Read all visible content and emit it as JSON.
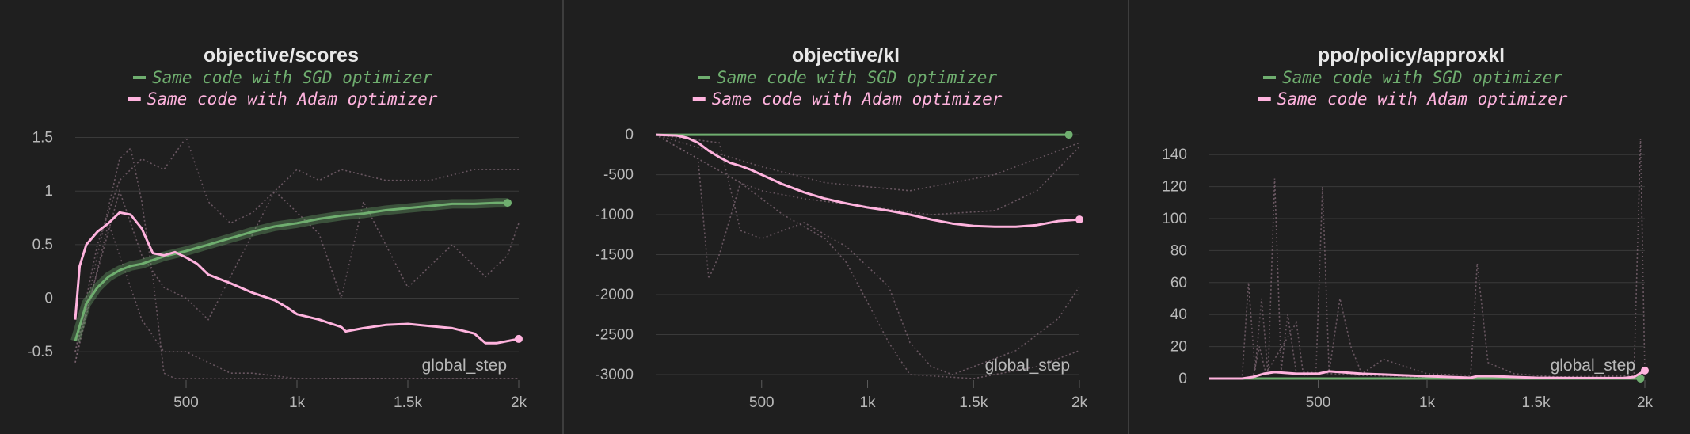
{
  "colors": {
    "background": "#1f1f1f",
    "grid": "#3a3a3a",
    "sgd": "#6fae6f",
    "adam": "#ffb3de",
    "ghost": "#7a6470",
    "text": "#e8e8e8",
    "tick": "#b8b8b8"
  },
  "chart_data": [
    {
      "type": "line",
      "title": "objective/scores",
      "xlabel": "global_step",
      "xlim": [
        0,
        2000
      ],
      "ylim": [
        -0.75,
        1.6
      ],
      "xticks": [
        {
          "v": 500,
          "label": "500"
        },
        {
          "v": 1000,
          "label": "1k"
        },
        {
          "v": 1500,
          "label": "1.5k"
        },
        {
          "v": 2000,
          "label": "2k"
        }
      ],
      "yticks": [
        {
          "v": 1.5,
          "label": "1.5"
        },
        {
          "v": 1,
          "label": "1"
        },
        {
          "v": 0.5,
          "label": "0.5"
        },
        {
          "v": 0,
          "label": "0"
        },
        {
          "v": -0.5,
          "label": "-0.5"
        }
      ],
      "series": [
        {
          "name": "Same code with SGD optimizer",
          "color": "#6fae6f",
          "x": [
            0,
            50,
            100,
            150,
            200,
            250,
            300,
            400,
            500,
            600,
            700,
            800,
            900,
            1000,
            1100,
            1200,
            1300,
            1400,
            1500,
            1600,
            1700,
            1800,
            1900,
            1950
          ],
          "y": [
            -0.4,
            -0.05,
            0.1,
            0.2,
            0.26,
            0.3,
            0.32,
            0.39,
            0.44,
            0.5,
            0.56,
            0.62,
            0.67,
            0.7,
            0.74,
            0.77,
            0.79,
            0.82,
            0.84,
            0.86,
            0.88,
            0.88,
            0.89,
            0.89
          ]
        },
        {
          "name": "Same code with Adam optimizer",
          "color": "#ffb3de",
          "x": [
            0,
            20,
            50,
            100,
            150,
            200,
            250,
            300,
            350,
            400,
            450,
            500,
            550,
            600,
            700,
            800,
            900,
            950,
            1000,
            1100,
            1200,
            1220,
            1300,
            1400,
            1500,
            1600,
            1700,
            1800,
            1850,
            1900,
            2000
          ],
          "y": [
            -0.2,
            0.3,
            0.5,
            0.62,
            0.7,
            0.8,
            0.78,
            0.65,
            0.42,
            0.4,
            0.43,
            0.38,
            0.32,
            0.22,
            0.14,
            0.05,
            -0.02,
            -0.08,
            -0.15,
            -0.2,
            -0.27,
            -0.31,
            -0.28,
            -0.25,
            -0.24,
            -0.26,
            -0.28,
            -0.33,
            -0.42,
            -0.42,
            -0.38
          ]
        }
      ]
    },
    {
      "type": "line",
      "title": "objective/kl",
      "xlabel": "global_step",
      "xlim": [
        0,
        2000
      ],
      "ylim": [
        -3050,
        100
      ],
      "xticks": [
        {
          "v": 500,
          "label": "500"
        },
        {
          "v": 1000,
          "label": "1k"
        },
        {
          "v": 1500,
          "label": "1.5k"
        },
        {
          "v": 2000,
          "label": "2k"
        }
      ],
      "yticks": [
        {
          "v": 0,
          "label": "0"
        },
        {
          "v": -500,
          "label": "-500"
        },
        {
          "v": -1000,
          "label": "-1000"
        },
        {
          "v": -1500,
          "label": "-1500"
        },
        {
          "v": -2000,
          "label": "-2000"
        },
        {
          "v": -2500,
          "label": "-2500"
        },
        {
          "v": -3000,
          "label": "-3000"
        }
      ],
      "series": [
        {
          "name": "Same code with SGD optimizer",
          "color": "#6fae6f",
          "x": [
            0,
            500,
            1000,
            1500,
            1950
          ],
          "y": [
            0,
            0,
            0,
            0,
            0
          ]
        },
        {
          "name": "Same code with Adam optimizer",
          "color": "#ffb3de",
          "x": [
            0,
            100,
            150,
            200,
            250,
            300,
            350,
            400,
            450,
            500,
            600,
            700,
            800,
            900,
            1000,
            1100,
            1200,
            1300,
            1400,
            1500,
            1600,
            1700,
            1800,
            1900,
            2000
          ],
          "y": [
            0,
            -10,
            -40,
            -100,
            -200,
            -280,
            -350,
            -390,
            -440,
            -500,
            -620,
            -720,
            -800,
            -860,
            -910,
            -950,
            -1000,
            -1060,
            -1110,
            -1140,
            -1150,
            -1150,
            -1130,
            -1080,
            -1060
          ]
        }
      ]
    },
    {
      "type": "line",
      "title": "ppo/policy/approxkl",
      "xlabel": "global_step",
      "xlim": [
        0,
        2000
      ],
      "ylim": [
        0,
        150
      ],
      "xticks": [
        {
          "v": 500,
          "label": "500"
        },
        {
          "v": 1000,
          "label": "1k"
        },
        {
          "v": 1500,
          "label": "1.5k"
        },
        {
          "v": 2000,
          "label": "2k"
        }
      ],
      "yticks": [
        {
          "v": 0,
          "label": "0"
        },
        {
          "v": 20,
          "label": "20"
        },
        {
          "v": 40,
          "label": "40"
        },
        {
          "v": 60,
          "label": "60"
        },
        {
          "v": 80,
          "label": "80"
        },
        {
          "v": 100,
          "label": "100"
        },
        {
          "v": 120,
          "label": "120"
        },
        {
          "v": 140,
          "label": "140"
        }
      ],
      "series": [
        {
          "name": "Same code with SGD optimizer",
          "color": "#6fae6f",
          "x": [
            0,
            500,
            1000,
            1500,
            1980
          ],
          "y": [
            0,
            0,
            0,
            0,
            0
          ]
        },
        {
          "name": "Same code with Adam optimizer",
          "color": "#ffb3de",
          "x": [
            0,
            150,
            200,
            250,
            300,
            350,
            400,
            450,
            500,
            550,
            600,
            700,
            800,
            900,
            1000,
            1100,
            1200,
            1230,
            1300,
            1500,
            1700,
            1900,
            1950,
            2000
          ],
          "y": [
            0,
            0,
            1,
            3,
            4,
            3.5,
            3,
            3,
            3,
            4.5,
            4,
            3,
            2.5,
            2,
            1.5,
            1,
            0.5,
            1.5,
            1.5,
            0.5,
            0.3,
            0.3,
            1,
            5
          ]
        }
      ]
    }
  ]
}
